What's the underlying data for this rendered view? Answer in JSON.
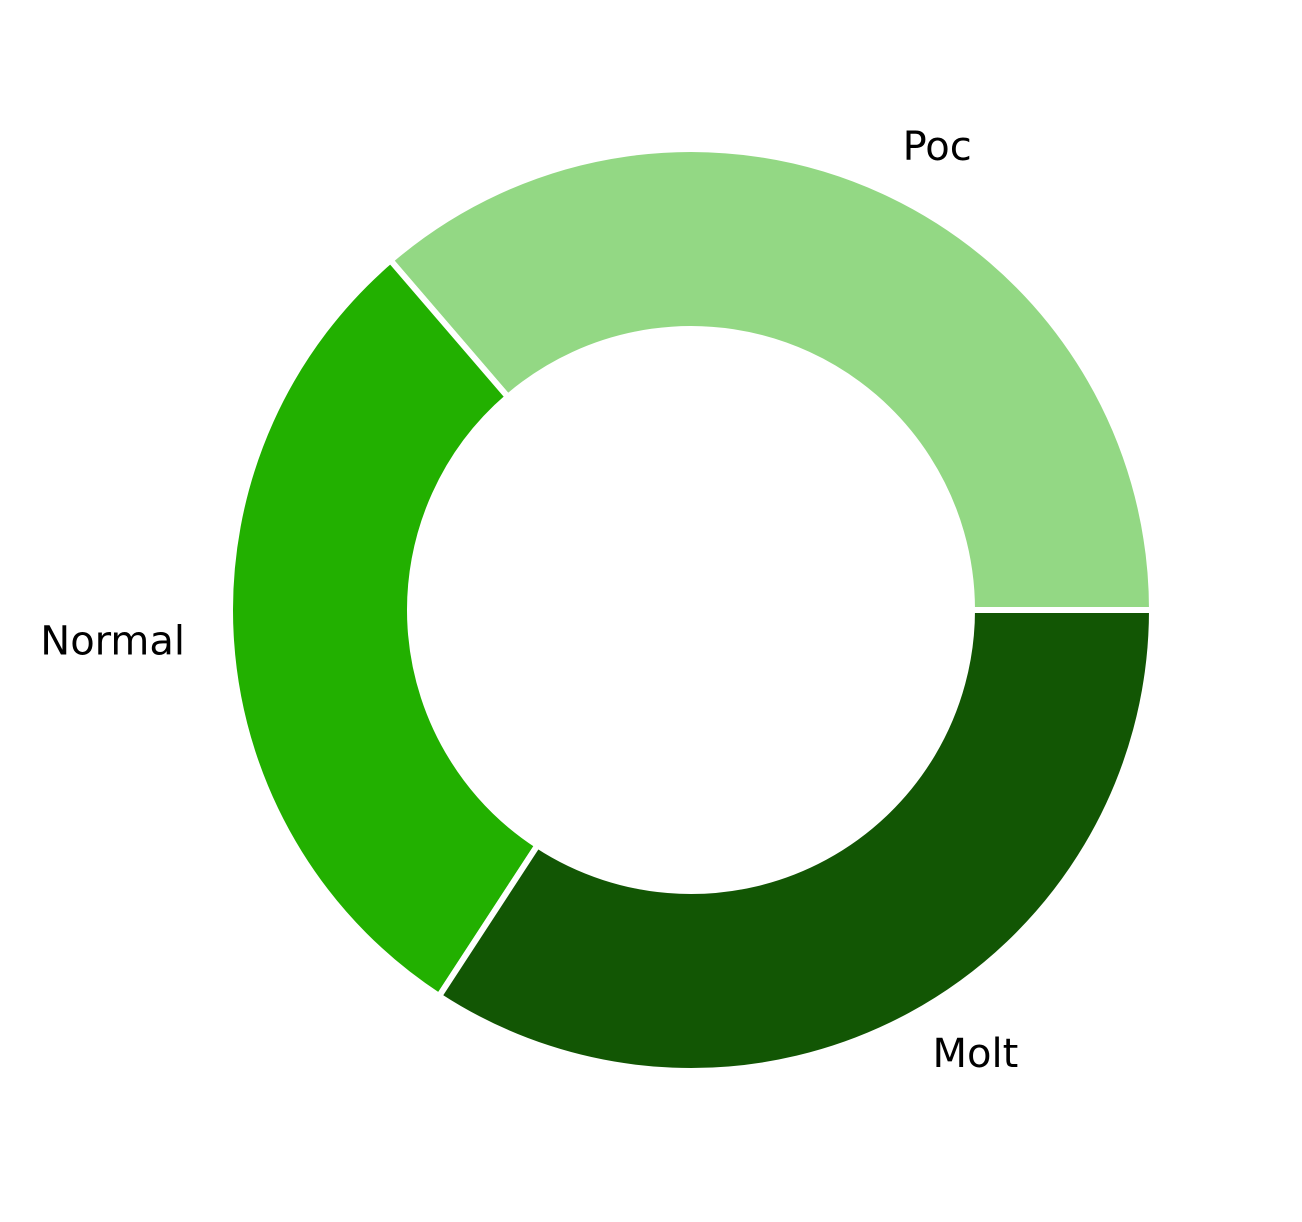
{
  "chart_data": {
    "type": "donut",
    "categories": [
      "Poc",
      "Normal",
      "Molt"
    ],
    "values": [
      36.3,
      29.5,
      34.2
    ],
    "colors": [
      "#93d884",
      "#22b000",
      "#125604"
    ],
    "start_angle": 0,
    "direction": "counterclockwise"
  }
}
